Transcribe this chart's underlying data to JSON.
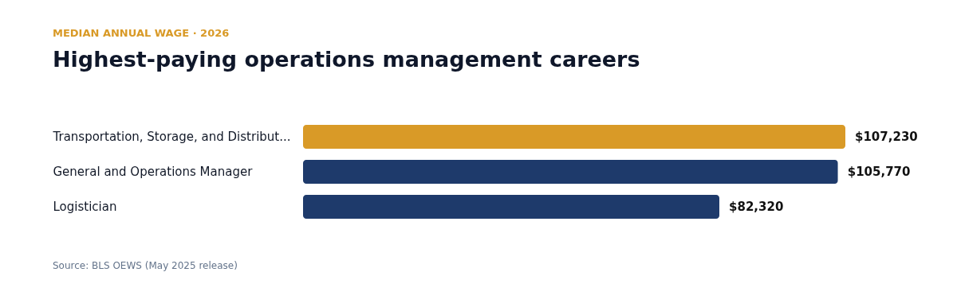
{
  "chart_data": {
    "type": "bar",
    "orientation": "horizontal",
    "subtitle": "MEDIAN ANNUAL WAGE · 2026",
    "title": "Highest-paying operations management careers",
    "categories": [
      "Transportation, Storage, and Distribut...",
      "General and Operations Manager",
      "Logistician"
    ],
    "values": [
      107230,
      105770,
      82320
    ],
    "colors": [
      "#d99a27",
      "#1e3a6b",
      "#1e3a6b"
    ],
    "value_labels": [
      "$107,230",
      "$105,770",
      "$82,320"
    ],
    "annotations": [
      "Source: BLS OEWS (May 2025 release)"
    ]
  }
}
